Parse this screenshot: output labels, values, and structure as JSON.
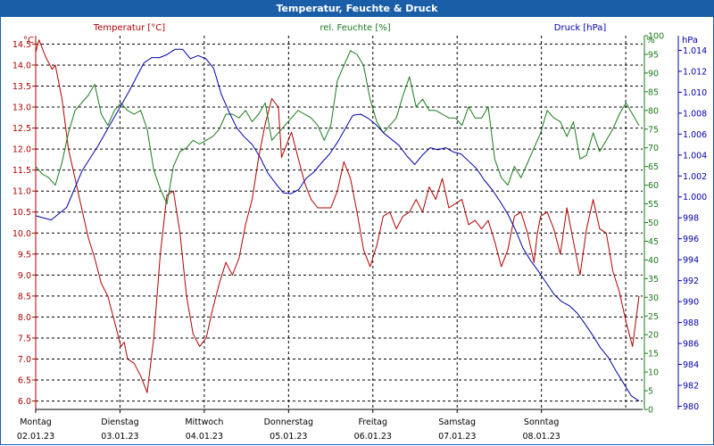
{
  "title": "Temperatur, Feuchte & Druck",
  "colors": {
    "header": "#1a5ea8",
    "temp": "#b00000",
    "humidity": "#1a7a1a",
    "pressure": "#0000aa",
    "grid": "#000000"
  },
  "chart_data": {
    "type": "line",
    "legend": {
      "temp": "Temperatur [°C]",
      "humidity": "rel. Feuchte [%]",
      "pressure": "Druck [hPa]"
    },
    "axes": {
      "temp": {
        "unit": "°C",
        "range": [
          5.8,
          14.7
        ],
        "ticks": [
          "6.0",
          "6.5",
          "7.0",
          "7.5",
          "8.0",
          "8.5",
          "9.0",
          "9.5",
          "10.0",
          "10.5",
          "11.0",
          "11.5",
          "12.0",
          "12.5",
          "13.0",
          "13.5",
          "14.0",
          "14.5"
        ]
      },
      "humidity": {
        "unit": "%",
        "range": [
          0,
          100
        ],
        "ticks": [
          "0",
          "5",
          "10",
          "15",
          "20",
          "25",
          "30",
          "35",
          "40",
          "45",
          "50",
          "55",
          "60",
          "65",
          "70",
          "75",
          "80",
          "85",
          "90",
          "95",
          "100"
        ]
      },
      "pressure": {
        "unit": "hPa",
        "range": [
          979.7,
          1015.4
        ],
        "ticks": [
          "980",
          "982",
          "984",
          "986",
          "988",
          "990",
          "992",
          "994",
          "996",
          "998",
          "1.000",
          "1.002",
          "1.004",
          "1.006",
          "1.008",
          "1.010",
          "1.012",
          "1.014"
        ]
      }
    },
    "x_range_days": [
      0,
      7.2
    ],
    "x_labels": [
      {
        "day": "Montag",
        "date": "02.01.23"
      },
      {
        "day": "Dienstag",
        "date": "03.01.23"
      },
      {
        "day": "Mittwoch",
        "date": "04.01.23"
      },
      {
        "day": "Donnerstag",
        "date": "05.01.23"
      },
      {
        "day": "Freitag",
        "date": "06.01.23"
      },
      {
        "day": "Samstag",
        "date": "07.01.23"
      },
      {
        "day": "Sonntag",
        "date": "08.01.23"
      }
    ],
    "series": [
      {
        "name": "Temperatur [°C]",
        "axis": "temp",
        "points": [
          [
            0.0,
            14.3
          ],
          [
            0.05,
            14.6
          ],
          [
            0.15,
            14.2
          ],
          [
            0.25,
            13.9
          ],
          [
            0.3,
            14.0
          ],
          [
            0.4,
            13.2
          ],
          [
            0.5,
            12.0
          ],
          [
            0.6,
            11.3
          ],
          [
            0.7,
            10.6
          ],
          [
            0.8,
            9.9
          ],
          [
            0.9,
            9.4
          ],
          [
            1.0,
            8.8
          ],
          [
            1.1,
            8.5
          ],
          [
            1.2,
            7.9
          ],
          [
            1.3,
            7.3
          ],
          [
            1.35,
            7.4
          ],
          [
            1.4,
            7.0
          ],
          [
            1.5,
            6.9
          ],
          [
            1.6,
            6.6
          ],
          [
            1.7,
            6.2
          ],
          [
            1.8,
            7.5
          ],
          [
            1.9,
            9.5
          ],
          [
            2.0,
            10.9
          ],
          [
            2.1,
            11.0
          ],
          [
            2.2,
            10.0
          ],
          [
            2.3,
            8.5
          ],
          [
            2.4,
            7.6
          ],
          [
            2.5,
            7.3
          ],
          [
            2.6,
            7.5
          ],
          [
            2.7,
            8.2
          ],
          [
            2.8,
            8.8
          ],
          [
            2.9,
            9.3
          ],
          [
            3.0,
            9.0
          ],
          [
            3.1,
            9.4
          ],
          [
            3.2,
            10.2
          ],
          [
            3.3,
            10.8
          ],
          [
            3.4,
            11.8
          ],
          [
            3.5,
            12.6
          ],
          [
            3.6,
            13.2
          ],
          [
            3.7,
            13.0
          ],
          [
            3.75,
            11.8
          ],
          [
            3.8,
            12.0
          ],
          [
            3.9,
            12.4
          ],
          [
            4.0,
            11.8
          ],
          [
            4.1,
            11.2
          ],
          [
            4.2,
            10.8
          ],
          [
            4.3,
            10.6
          ],
          [
            4.4,
            10.6
          ],
          [
            4.5,
            10.6
          ],
          [
            4.6,
            11.0
          ],
          [
            4.7,
            11.7
          ],
          [
            4.8,
            11.3
          ],
          [
            4.9,
            10.5
          ],
          [
            5.0,
            9.6
          ],
          [
            5.1,
            9.2
          ],
          [
            5.2,
            9.7
          ],
          [
            5.3,
            10.4
          ],
          [
            5.4,
            10.5
          ],
          [
            5.5,
            10.1
          ],
          [
            5.6,
            10.4
          ],
          [
            5.7,
            10.5
          ],
          [
            5.8,
            10.8
          ],
          [
            5.9,
            10.5
          ],
          [
            6.0,
            11.1
          ],
          [
            6.1,
            10.8
          ],
          [
            6.2,
            11.3
          ],
          [
            6.3,
            10.6
          ],
          [
            6.4,
            10.7
          ],
          [
            6.5,
            10.8
          ],
          [
            6.6,
            10.2
          ],
          [
            6.7,
            10.3
          ],
          [
            6.8,
            10.1
          ],
          [
            6.9,
            10.3
          ],
          [
            7.0,
            9.8
          ],
          [
            7.1,
            9.2
          ],
          [
            7.2,
            9.6
          ],
          [
            7.3,
            10.4
          ],
          [
            7.4,
            10.5
          ],
          [
            7.5,
            10.0
          ],
          [
            7.6,
            9.3
          ],
          [
            7.65,
            10.0
          ],
          [
            7.7,
            10.4
          ],
          [
            7.8,
            10.5
          ],
          [
            7.9,
            10.1
          ],
          [
            8.0,
            9.5
          ],
          [
            8.1,
            10.6
          ],
          [
            8.2,
            9.8
          ],
          [
            8.3,
            9.0
          ],
          [
            8.4,
            10.1
          ],
          [
            8.5,
            10.8
          ],
          [
            8.6,
            10.1
          ],
          [
            8.7,
            10.0
          ],
          [
            8.8,
            9.1
          ],
          [
            8.9,
            8.6
          ],
          [
            9.0,
            7.9
          ],
          [
            9.1,
            7.3
          ],
          [
            9.2,
            8.5
          ]
        ]
      },
      {
        "name": "rel. Feuchte [%]",
        "axis": "humidity",
        "points": [
          [
            0.0,
            65
          ],
          [
            0.1,
            63
          ],
          [
            0.2,
            62
          ],
          [
            0.3,
            60
          ],
          [
            0.4,
            66
          ],
          [
            0.5,
            74
          ],
          [
            0.6,
            80
          ],
          [
            0.7,
            82
          ],
          [
            0.8,
            84
          ],
          [
            0.9,
            87
          ],
          [
            1.0,
            79
          ],
          [
            1.1,
            76
          ],
          [
            1.2,
            80
          ],
          [
            1.3,
            82
          ],
          [
            1.4,
            80
          ],
          [
            1.5,
            79
          ],
          [
            1.6,
            80
          ],
          [
            1.7,
            75
          ],
          [
            1.8,
            64
          ],
          [
            1.9,
            59
          ],
          [
            2.0,
            55
          ],
          [
            2.1,
            65
          ],
          [
            2.2,
            69
          ],
          [
            2.3,
            70
          ],
          [
            2.4,
            72
          ],
          [
            2.5,
            71
          ],
          [
            2.6,
            72
          ],
          [
            2.7,
            73
          ],
          [
            2.8,
            75
          ],
          [
            2.9,
            79
          ],
          [
            3.0,
            79
          ],
          [
            3.1,
            78
          ],
          [
            3.2,
            80
          ],
          [
            3.3,
            77
          ],
          [
            3.4,
            79
          ],
          [
            3.5,
            82
          ],
          [
            3.6,
            72
          ],
          [
            3.7,
            74
          ],
          [
            3.8,
            76
          ],
          [
            3.9,
            78
          ],
          [
            4.0,
            80
          ],
          [
            4.1,
            79
          ],
          [
            4.2,
            78
          ],
          [
            4.3,
            76
          ],
          [
            4.4,
            72
          ],
          [
            4.5,
            76
          ],
          [
            4.6,
            88
          ],
          [
            4.7,
            92
          ],
          [
            4.8,
            96
          ],
          [
            4.9,
            95
          ],
          [
            5.0,
            92
          ],
          [
            5.1,
            83
          ],
          [
            5.2,
            77
          ],
          [
            5.3,
            74
          ],
          [
            5.4,
            76
          ],
          [
            5.5,
            78
          ],
          [
            5.6,
            84
          ],
          [
            5.7,
            89
          ],
          [
            5.8,
            81
          ],
          [
            5.9,
            83
          ],
          [
            6.0,
            80
          ],
          [
            6.1,
            80
          ],
          [
            6.2,
            79
          ],
          [
            6.3,
            78
          ],
          [
            6.4,
            78
          ],
          [
            6.5,
            76
          ],
          [
            6.6,
            81
          ],
          [
            6.7,
            78
          ],
          [
            6.8,
            78
          ],
          [
            6.9,
            81
          ],
          [
            7.0,
            67
          ],
          [
            7.1,
            62
          ],
          [
            7.2,
            60
          ],
          [
            7.3,
            65
          ],
          [
            7.4,
            62
          ],
          [
            7.5,
            66
          ],
          [
            7.6,
            70
          ],
          [
            7.7,
            74
          ],
          [
            7.8,
            80
          ],
          [
            7.9,
            78
          ],
          [
            8.0,
            77
          ],
          [
            8.1,
            73
          ],
          [
            8.2,
            77
          ],
          [
            8.3,
            67
          ],
          [
            8.4,
            68
          ],
          [
            8.5,
            74
          ],
          [
            8.6,
            69
          ],
          [
            8.7,
            72
          ],
          [
            8.8,
            75
          ],
          [
            8.9,
            79
          ],
          [
            9.0,
            82
          ],
          [
            9.1,
            79
          ],
          [
            9.2,
            76
          ]
        ]
      },
      {
        "name": "Druck [hPa]",
        "axis": "pressure",
        "points": [
          [
            0.0,
            998.2
          ],
          [
            0.2,
            997.8
          ],
          [
            0.4,
            999.0
          ],
          [
            0.6,
            1002.5
          ],
          [
            0.8,
            1004.8
          ],
          [
            1.0,
            1007.4
          ],
          [
            1.2,
            1010.0
          ],
          [
            1.3,
            1011.4
          ],
          [
            1.4,
            1012.8
          ],
          [
            1.5,
            1013.3
          ],
          [
            1.6,
            1013.3
          ],
          [
            1.7,
            1013.6
          ],
          [
            1.8,
            1014.1
          ],
          [
            1.9,
            1014.1
          ],
          [
            2.0,
            1013.2
          ],
          [
            2.1,
            1013.5
          ],
          [
            2.2,
            1013.2
          ],
          [
            2.3,
            1012.3
          ],
          [
            2.4,
            1009.8
          ],
          [
            2.5,
            1008.1
          ],
          [
            2.6,
            1006.6
          ],
          [
            2.7,
            1005.7
          ],
          [
            2.8,
            1005.0
          ],
          [
            2.9,
            1003.8
          ],
          [
            3.0,
            1002.3
          ],
          [
            3.1,
            1001.3
          ],
          [
            3.2,
            1000.4
          ],
          [
            3.3,
            1000.3
          ],
          [
            3.4,
            1000.7
          ],
          [
            3.5,
            1001.8
          ],
          [
            3.6,
            1002.4
          ],
          [
            3.7,
            1003.3
          ],
          [
            3.8,
            1004.1
          ],
          [
            3.9,
            1005.2
          ],
          [
            4.0,
            1006.5
          ],
          [
            4.1,
            1007.8
          ],
          [
            4.2,
            1007.9
          ],
          [
            4.3,
            1007.5
          ],
          [
            4.4,
            1006.9
          ],
          [
            4.5,
            1006.1
          ],
          [
            4.6,
            1005.5
          ],
          [
            4.7,
            1004.9
          ],
          [
            4.8,
            1003.9
          ],
          [
            4.9,
            1003.1
          ],
          [
            5.0,
            1004.0
          ],
          [
            5.1,
            1004.7
          ],
          [
            5.2,
            1004.5
          ],
          [
            5.3,
            1004.7
          ],
          [
            5.4,
            1004.3
          ],
          [
            5.5,
            1004.1
          ],
          [
            5.6,
            1003.4
          ],
          [
            5.7,
            1002.7
          ],
          [
            5.8,
            1001.6
          ],
          [
            5.9,
            1000.7
          ],
          [
            6.0,
            999.6
          ],
          [
            6.1,
            998.4
          ],
          [
            6.2,
            996.9
          ],
          [
            6.3,
            995.1
          ],
          [
            6.4,
            993.9
          ],
          [
            6.5,
            992.9
          ],
          [
            6.6,
            991.8
          ],
          [
            6.7,
            990.7
          ],
          [
            6.8,
            990.0
          ],
          [
            6.9,
            989.6
          ],
          [
            7.0,
            988.9
          ],
          [
            7.1,
            987.9
          ],
          [
            7.2,
            986.8
          ],
          [
            7.3,
            985.6
          ],
          [
            7.4,
            984.7
          ],
          [
            7.5,
            983.4
          ],
          [
            7.6,
            982.2
          ],
          [
            7.7,
            981.0
          ],
          [
            7.8,
            980.5
          ]
        ]
      }
    ]
  }
}
